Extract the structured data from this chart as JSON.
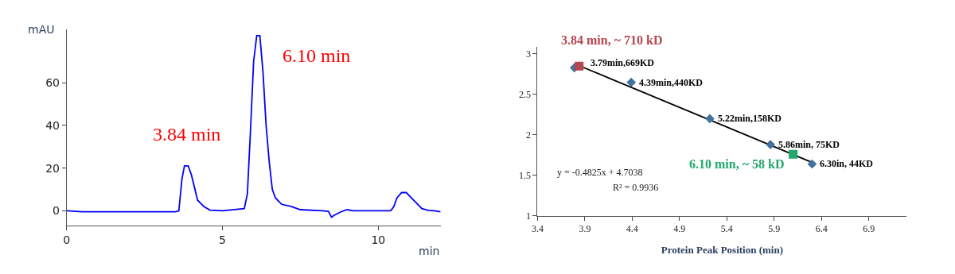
{
  "chart_data": [
    {
      "type": "line",
      "xlabel": "min",
      "ylabel": "mAU",
      "xlim": [
        0,
        12.0
      ],
      "ylim": [
        -7,
        85
      ],
      "xticks": [
        0,
        5,
        10
      ],
      "yticks": [
        0,
        20,
        40,
        60
      ],
      "legend": false,
      "marker": "none",
      "series": [
        {
          "color": "#0000ff",
          "x": [
            0,
            0.5,
            1.5,
            3.5,
            3.6,
            3.7,
            3.78,
            3.9,
            4.0,
            4.1,
            4.2,
            4.4,
            4.6,
            5.0,
            5.7,
            5.8,
            5.9,
            6.0,
            6.1,
            6.2,
            6.3,
            6.4,
            6.5,
            6.6,
            6.7,
            6.9,
            7.2,
            7.5,
            8.2,
            8.4,
            8.5,
            8.6,
            8.8,
            9.0,
            9.2,
            10.4,
            10.5,
            10.6,
            10.75,
            10.9,
            11.0,
            11.2,
            11.4,
            11.6,
            11.8,
            12.0
          ],
          "values": [
            0,
            -0.5,
            -0.5,
            -0.5,
            0,
            15,
            21,
            21,
            17,
            11,
            5,
            2,
            0.3,
            0,
            1,
            8,
            38,
            70,
            82,
            82,
            65,
            40,
            23,
            10,
            6,
            3,
            2,
            0.5,
            0,
            -0.3,
            -3,
            -2,
            -0.5,
            0.5,
            0,
            0,
            2,
            6,
            8.5,
            8.5,
            7,
            4,
            1,
            0.2,
            0,
            -0.5
          ]
        }
      ],
      "annotations": [
        {
          "text": "3.84 min",
          "x": 3.84,
          "y": 21
        },
        {
          "text": "6.10 min",
          "x": 6.1,
          "y": 82
        }
      ]
    },
    {
      "type": "scatter",
      "xlabel": "Protein Peak Position (min)",
      "xlim": [
        3.4,
        7.3
      ],
      "ylim": [
        1,
        3.09
      ],
      "xticks": [
        3.4,
        3.9,
        4.4,
        4.9,
        5.4,
        5.9,
        6.4,
        6.9
      ],
      "yticks": [
        1,
        1.5,
        2,
        2.5,
        3
      ],
      "legend": false,
      "series": [
        {
          "type": "line",
          "color": "#000000",
          "marker": "none",
          "x": [
            3.79,
            6.3
          ],
          "values": [
            2.88,
            1.66
          ]
        },
        {
          "color": "#41719c",
          "marker": "diamond",
          "x": [
            3.79,
            4.39,
            5.22,
            5.86,
            6.3
          ],
          "values": [
            2.83,
            2.65,
            2.2,
            1.88,
            1.64
          ],
          "value_labels": [
            "3.79min,669KD",
            "4.39min,440KD",
            "5.22min,158KD",
            "5.86min, 75KD",
            "6.30in, 44KD"
          ]
        },
        {
          "color": "#b5474f",
          "marker": "square",
          "x": [
            3.84
          ],
          "values": [
            2.85
          ],
          "value_labels": [
            "3.84 min, ~ 710 kD"
          ]
        },
        {
          "color": "#22a86b",
          "marker": "square",
          "x": [
            6.1
          ],
          "values": [
            1.76
          ],
          "value_labels": [
            "6.10 min, ~ 58 kD"
          ]
        }
      ],
      "annotations": [
        "y = -0.4825x + 4.7038",
        "R² = 0.9936"
      ]
    }
  ]
}
